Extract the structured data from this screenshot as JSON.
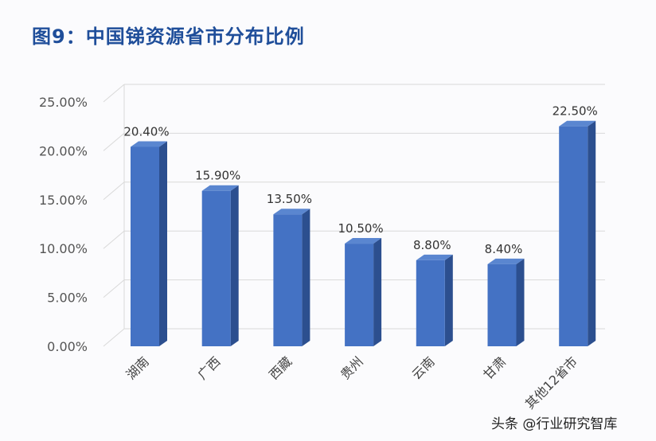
{
  "title": "图9：中国锑资源省市分布比例",
  "watermark": "头条 @行业研究智库",
  "chart_data": {
    "type": "bar",
    "title": "图9：中国锑资源省市分布比例",
    "categories": [
      "湖南",
      "广西",
      "西藏",
      "贵州",
      "云南",
      "甘肃",
      "其他12省市"
    ],
    "values": [
      20.4,
      15.9,
      13.5,
      10.5,
      8.8,
      8.4,
      22.5
    ],
    "data_labels": [
      "20.40%",
      "15.90%",
      "13.50%",
      "10.50%",
      "8.80%",
      "8.40%",
      "22.50%"
    ],
    "yticks": [
      "0.00%",
      "5.00%",
      "10.00%",
      "15.00%",
      "20.00%",
      "25.00%"
    ],
    "ylim": [
      0,
      25
    ],
    "grid": true,
    "style": "3d",
    "colors": {
      "front": "#4472c4",
      "side": "#2c4f8f",
      "top": "#5a86d0"
    }
  }
}
